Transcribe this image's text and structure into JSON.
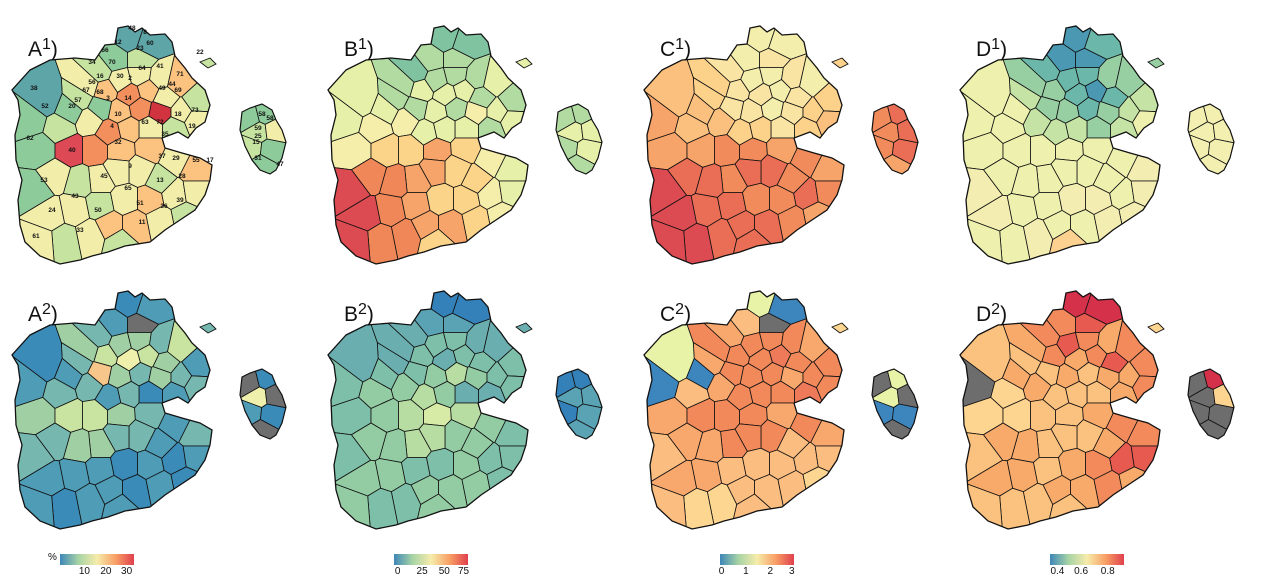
{
  "panels": [
    {
      "id": "A1",
      "letter": "A",
      "sup": "1)",
      "palette": [
        "#5ea5a8",
        "#8ecb9b",
        "#c6e4a0",
        "#f2eeaa",
        "#fcc380",
        "#f28f5d",
        "#dd4955",
        "#d1343f",
        "#96c895"
      ]
    },
    {
      "id": "B1",
      "letter": "B",
      "sup": "1)",
      "palette": [
        "#7fc3a0",
        "#b2dba2",
        "#e6f0a8",
        "#f5edaa",
        "#fcd489",
        "#f7a46a",
        "#f08758",
        "#dc4a52",
        "#a6d49f"
      ]
    },
    {
      "id": "C1",
      "letter": "C",
      "sup": "1)",
      "palette": [
        "#f3eeab",
        "#fae4a3",
        "#fcd18a",
        "#fbc07e",
        "#f7a46a",
        "#f28b5c",
        "#ea6d55",
        "#dc4a52",
        "#f7ecae"
      ]
    },
    {
      "id": "D1",
      "letter": "D",
      "sup": "1)",
      "palette": [
        "#4a98b2",
        "#6bb8ab",
        "#97cfa3",
        "#c5e3a4",
        "#edf1ad",
        "#f4edb1",
        "#f7e6a4",
        "#fdd291",
        "#f2efb0"
      ]
    },
    {
      "id": "A2",
      "letter": "A",
      "sup": "2)",
      "palette": [
        "#3a8bb8",
        "#4e9cb6",
        "#76b8b0",
        "#a0cfa3",
        "#c9e4a1",
        "#eef0ab",
        "#f7c68a",
        "#6e6e6e",
        "#5aa3b5"
      ]
    },
    {
      "id": "B2",
      "letter": "B",
      "sup": "2)",
      "palette": [
        "#3480b8",
        "#5aa3b5",
        "#6aaeb0",
        "#7ebfa9",
        "#93cca3",
        "#b7dda2",
        "#d7eba6",
        "#e9f1ad",
        "#7ebfa9"
      ]
    },
    {
      "id": "C2",
      "letter": "C2",
      "sup": "2)",
      "palette": [
        "#3d85bd",
        "#e8f3a7",
        "#fdd791",
        "#fcbe80",
        "#f9a86d",
        "#f2895b",
        "#ee7a59",
        "#6e6e6e",
        "#f5926b"
      ]
    },
    {
      "id": "D2",
      "letter": "D",
      "sup": "2)",
      "palette": [
        "#e6e99f",
        "#fde7a6",
        "#fdd490",
        "#fbc17e",
        "#f8aa6b",
        "#f28a5c",
        "#e75a4f",
        "#d6314a",
        "#6d6d6d"
      ]
    }
  ],
  "legends": [
    {
      "id": "A",
      "unit": "%",
      "ticks": [
        "10",
        "20",
        "30"
      ],
      "tick_pos": [
        0.33,
        0.62,
        0.9
      ],
      "colors": [
        "#3d87b8",
        "#a7d3a5",
        "#f6ecab",
        "#f8a065",
        "#e0404d"
      ]
    },
    {
      "id": "B",
      "unit": "",
      "ticks": [
        "0",
        "25",
        "50",
        "75"
      ],
      "tick_pos": [
        0.05,
        0.38,
        0.68,
        0.94
      ],
      "colors": [
        "#3d87b8",
        "#a7d3a5",
        "#f6ecab",
        "#f8a065",
        "#e0404d"
      ]
    },
    {
      "id": "C",
      "unit": "",
      "ticks": [
        "0",
        "1",
        "2",
        "3"
      ],
      "tick_pos": [
        0.02,
        0.35,
        0.68,
        0.97
      ],
      "colors": [
        "#3d87b8",
        "#a7d3a5",
        "#f6ecab",
        "#f8a065",
        "#e0404d"
      ]
    },
    {
      "id": "D",
      "unit": "",
      "ticks": [
        "0.4",
        "0.6",
        "0.8"
      ],
      "tick_pos": [
        0.1,
        0.42,
        0.78
      ],
      "colors": [
        "#3d87b8",
        "#a7d3a5",
        "#f6ecab",
        "#f8a065",
        "#e0404d"
      ]
    }
  ],
  "region_numbers": [
    "48",
    "8",
    "60",
    "12",
    "22",
    "23",
    "66",
    "70",
    "34",
    "16",
    "41",
    "71",
    "64",
    "56",
    "58",
    "67",
    "57",
    "68",
    "2",
    "49",
    "69",
    "38",
    "52",
    "20",
    "44",
    "73",
    "18",
    "14",
    "10",
    "72",
    "19",
    "62",
    "32",
    "63",
    "35",
    "58",
    "59",
    "25",
    "15",
    "3",
    "40",
    "37",
    "9",
    "28",
    "29",
    "55",
    "17",
    "45",
    "65",
    "53",
    "43",
    "36",
    "39",
    "13",
    "51",
    "50",
    "24",
    "11",
    "33",
    "61",
    "31",
    "47",
    "30",
    "4"
  ]
}
